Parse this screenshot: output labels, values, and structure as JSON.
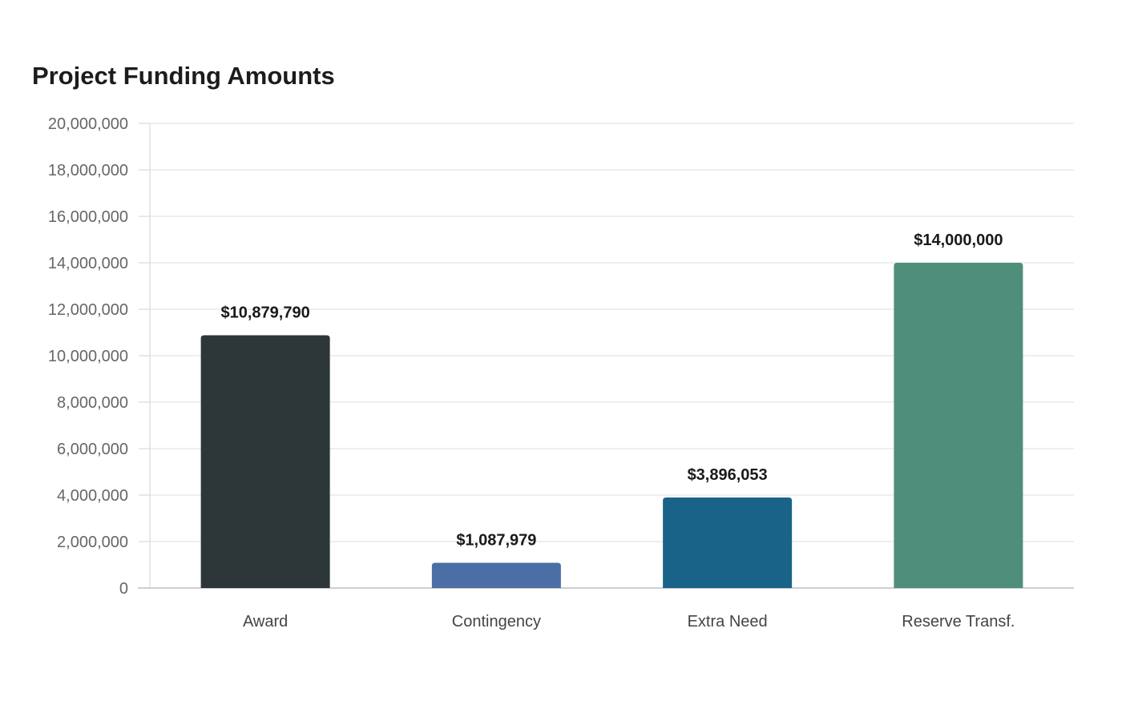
{
  "chart_data": {
    "type": "bar",
    "title": "Project Funding Amounts",
    "xlabel": "",
    "ylabel": "",
    "categories": [
      "Award",
      "Contingency",
      "Extra Need",
      "Reserve Transf."
    ],
    "values": [
      10879790,
      1087979,
      3896053,
      14000000
    ],
    "value_labels": [
      "$10,879,790",
      "$1,087,979",
      "$3,896,053",
      "$14,000,000"
    ],
    "ylim": [
      0,
      20000000
    ],
    "yticks": [
      0,
      2000000,
      4000000,
      6000000,
      8000000,
      10000000,
      12000000,
      14000000,
      16000000,
      18000000,
      20000000
    ],
    "ytick_labels": [
      "0",
      "2,000,000",
      "4,000,000",
      "6,000,000",
      "8,000,000",
      "10,000,000",
      "12,000,000",
      "14,000,000",
      "16,000,000",
      "18,000,000",
      "20,000,000"
    ],
    "bar_colors": [
      "#2d3638",
      "#4a6ea5",
      "#196389",
      "#4f8e7b"
    ],
    "grid": true,
    "legend": "none"
  }
}
